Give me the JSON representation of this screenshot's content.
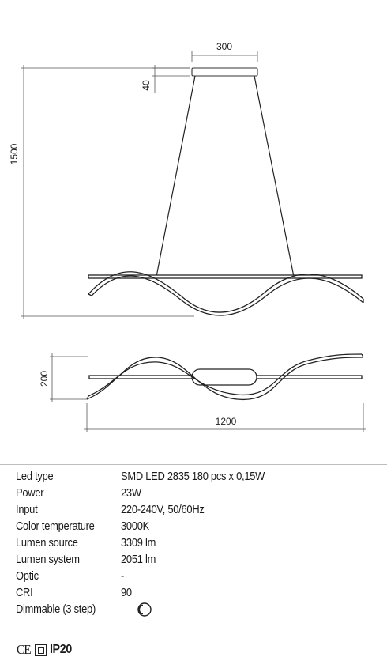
{
  "drawing": {
    "dims": {
      "canopy_width": "300",
      "canopy_height": "40",
      "total_height": "1500",
      "side_height": "200",
      "length": "1200"
    }
  },
  "specs": [
    {
      "label": "Led type",
      "value": "SMD LED 2835 180 pcs x 0,15W"
    },
    {
      "label": "Power",
      "value": "23W"
    },
    {
      "label": "Input",
      "value": "220-240V, 50/60Hz"
    },
    {
      "label": "Color temperature",
      "value": "3000K"
    },
    {
      "label": "Lumen source",
      "value": "3309 lm"
    },
    {
      "label": "Lumen system",
      "value": "2051 lm"
    },
    {
      "label": "Optic",
      "value": "-"
    },
    {
      "label": "CRI",
      "value": "90"
    },
    {
      "label": "Dimmable (3 step)",
      "value": "",
      "icon": "dimmable-3-step-icon"
    }
  ],
  "certifications": {
    "ce": "CE",
    "class_icon": "class-ii-double-square-icon",
    "ip": "IP20"
  }
}
